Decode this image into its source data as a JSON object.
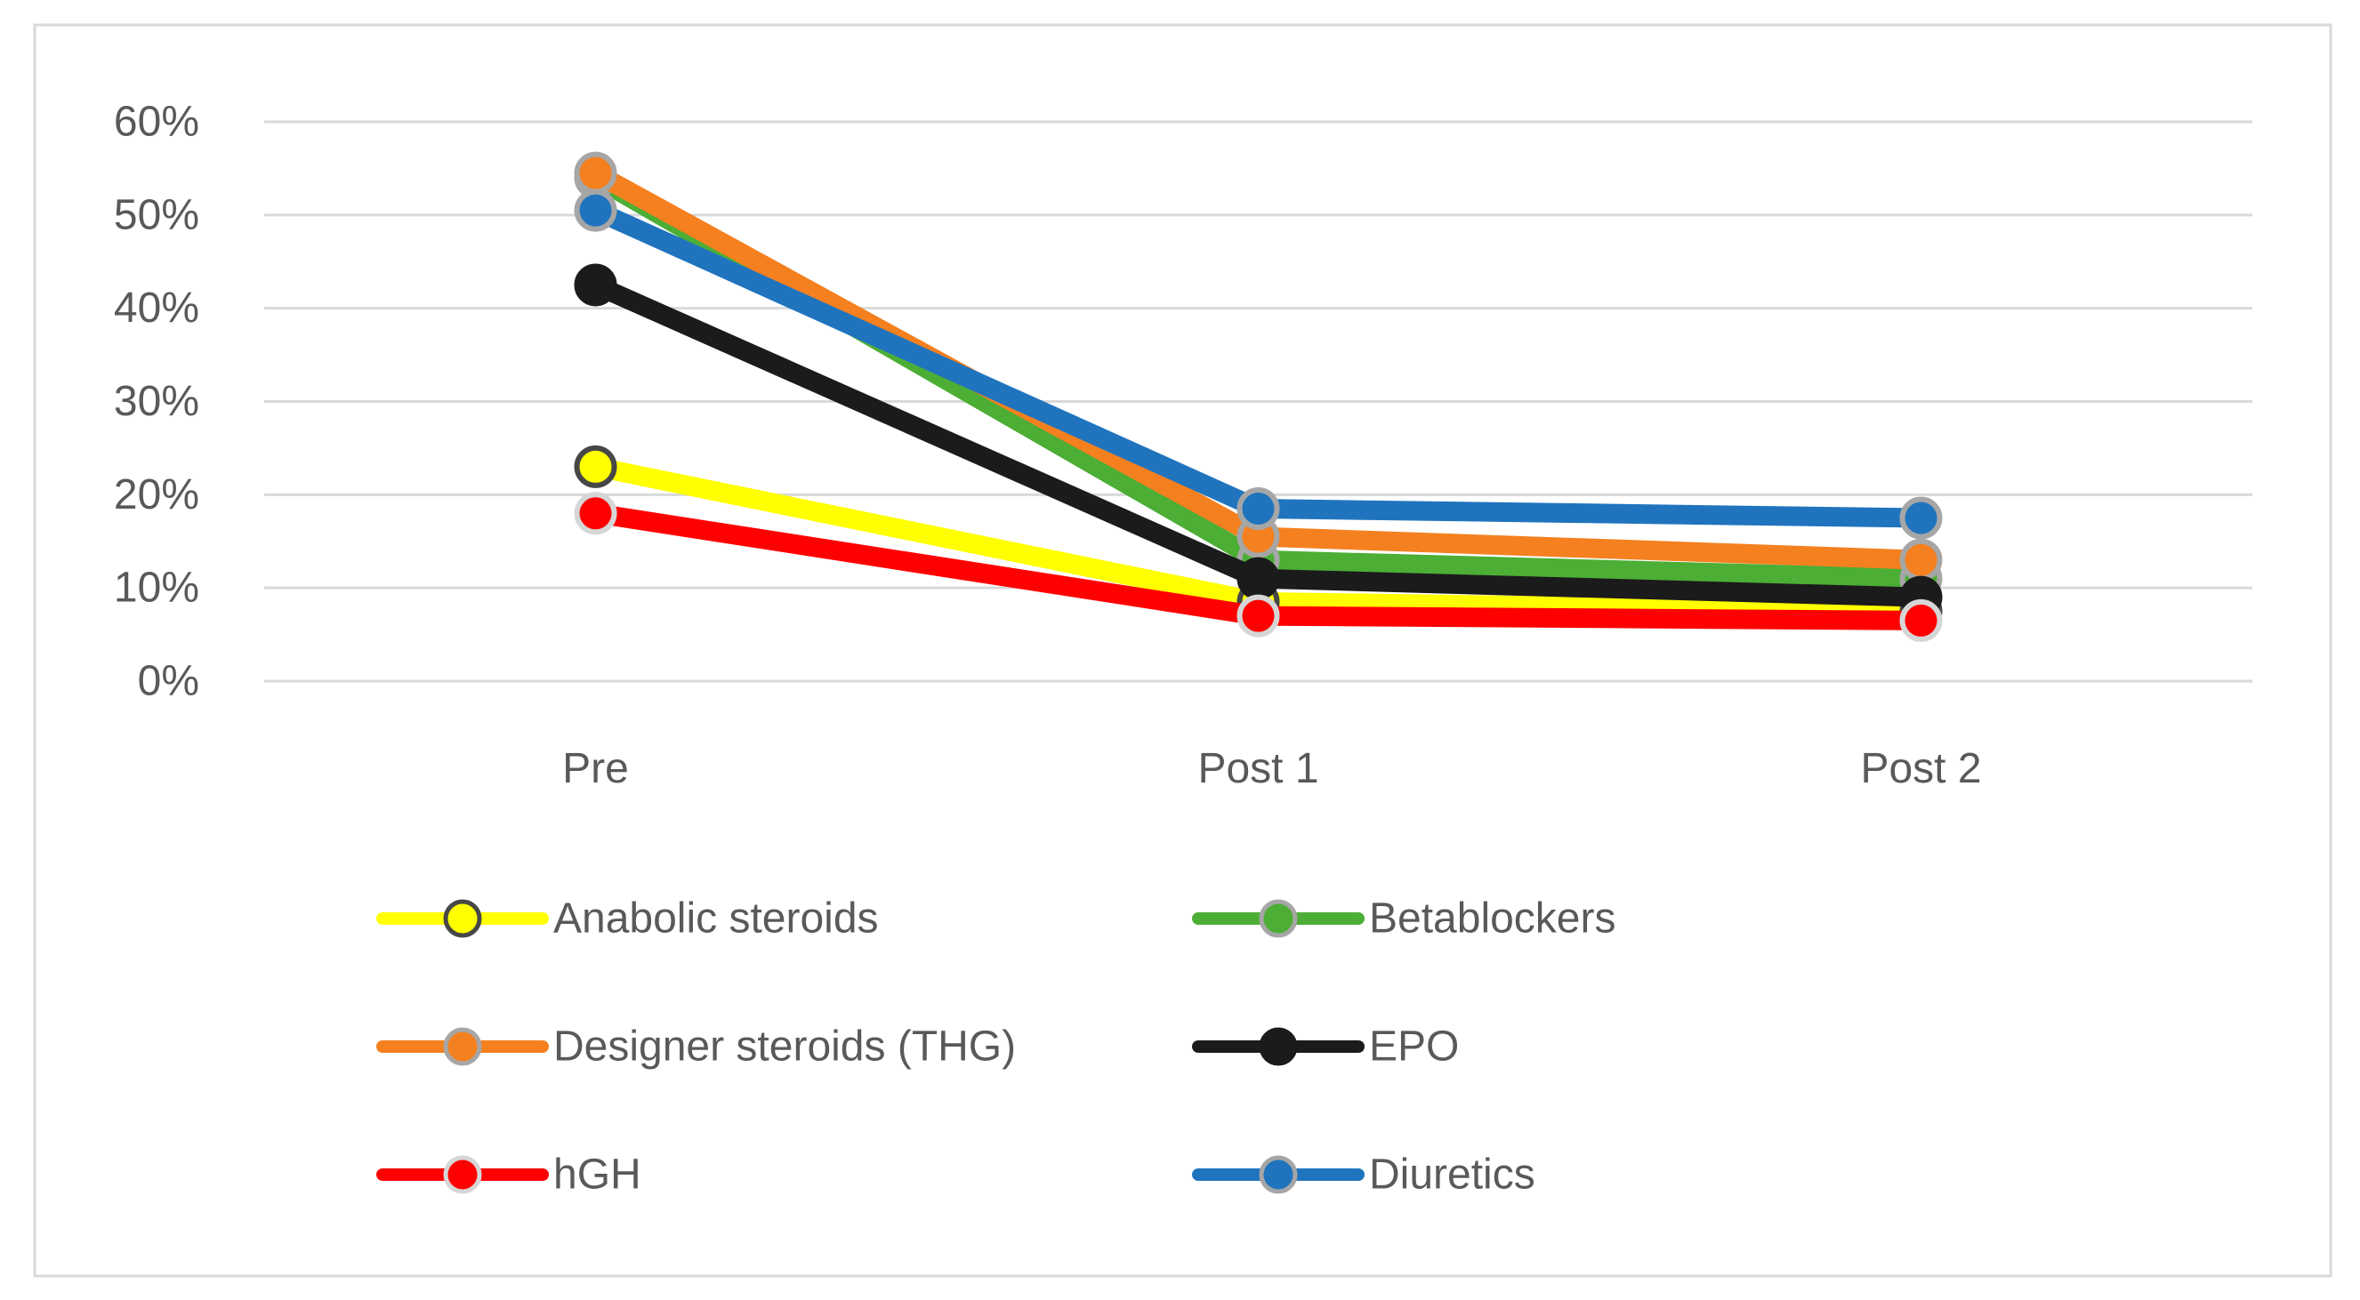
{
  "figure": {
    "background": "#ffffff",
    "frame_color": "#d9d9d9",
    "grid_color": "#d9d9d9",
    "text_color": "#595959"
  },
  "chart_data": {
    "type": "line",
    "title": "",
    "xlabel": "",
    "ylabel": "",
    "categories": [
      "Pre",
      "Post 1",
      "Post 2"
    ],
    "series": [
      {
        "name": "Anabolic steroids",
        "color": "#ffff00",
        "marker_outline": "#474747",
        "values": [
          23,
          8.5,
          7.5
        ]
      },
      {
        "name": "Betablockers",
        "color": "#4cae35",
        "marker_outline": "#a6a6a6",
        "values": [
          54,
          13,
          11
        ]
      },
      {
        "name": "Designer steroids (THG)",
        "color": "#f4801f",
        "marker_outline": "#a6a6a6",
        "values": [
          54.5,
          15.5,
          13
        ]
      },
      {
        "name": "EPO",
        "color": "#1b1b1b",
        "marker_outline": "#1b1b1b",
        "values": [
          42.5,
          11,
          9
        ]
      },
      {
        "name": "hGH",
        "color": "#ff0000",
        "marker_outline": "#d6d6d6",
        "values": [
          18,
          7,
          6.5
        ]
      },
      {
        "name": "Diuretics",
        "color": "#2074be",
        "marker_outline": "#a6a6a6",
        "values": [
          50.5,
          18.5,
          17.5
        ]
      }
    ],
    "y_ticks": [
      {
        "label": "60%",
        "value": 60
      },
      {
        "label": "50%",
        "value": 50
      },
      {
        "label": "40%",
        "value": 40
      },
      {
        "label": "30%",
        "value": 30
      },
      {
        "label": "20%",
        "value": 20
      },
      {
        "label": "10%",
        "value": 10
      },
      {
        "label": "0%",
        "value": 0
      }
    ],
    "ylim": [
      0,
      60
    ],
    "grid": "horizontal",
    "legend_position": "bottom",
    "legend_rows": [
      [
        0,
        1
      ],
      [
        2,
        3
      ],
      [
        4,
        5
      ]
    ]
  }
}
